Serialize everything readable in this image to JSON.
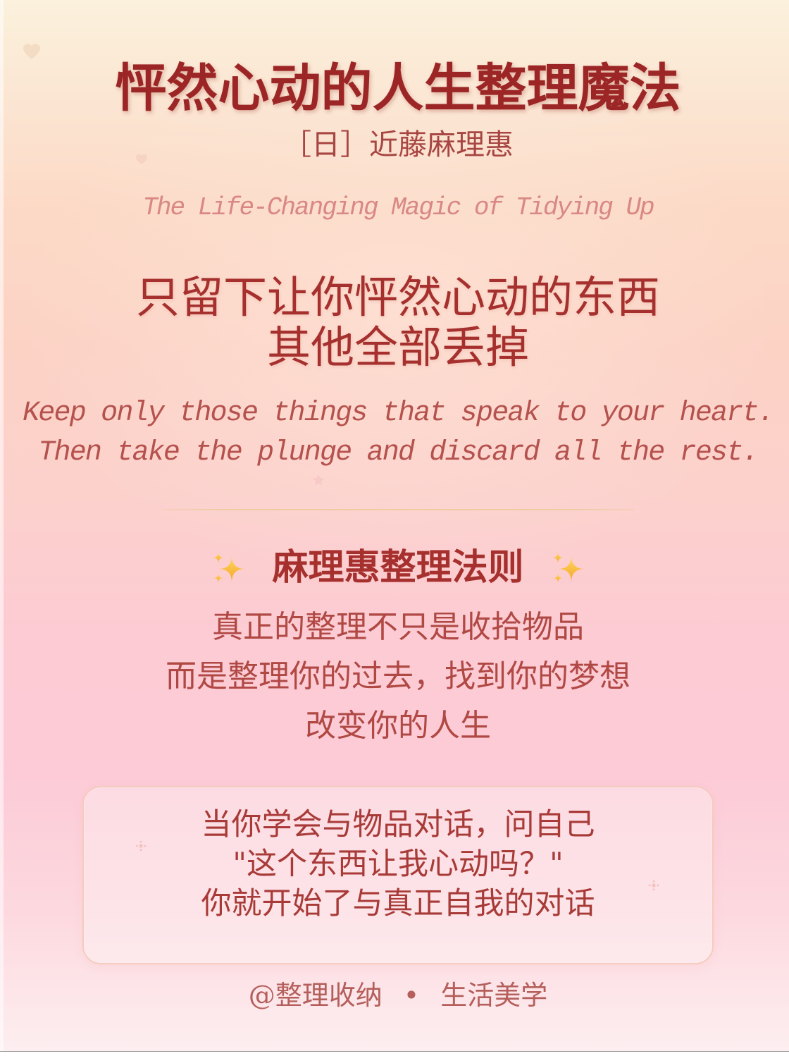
{
  "title": "怦然心动的人生整理魔法",
  "author": "［日］近藤麻理惠",
  "english_title": "The Life-Changing Magic of Tidying Up",
  "main_quote": {
    "lines": [
      "只留下让你怦然心动的东西",
      "其他全部丢掉"
    ]
  },
  "english_quote": {
    "lines": [
      "Keep only those things that speak to your heart.",
      "Then take the plunge and discard all the rest."
    ]
  },
  "rules": {
    "heading": "麻理惠整理法则",
    "lines": [
      "真正的整理不只是收拾物品",
      "而是整理你的过去，找到你的梦想",
      "改变你的人生"
    ]
  },
  "quote_box": {
    "lines": [
      "当你学会与物品对话，问自己",
      "\"这个东西让我心动吗？\"",
      "你就开始了与真正自我的对话"
    ]
  },
  "footer": {
    "handle": "@整理收纳",
    "separator": "•",
    "tagline": "生活美学"
  },
  "icons": {
    "heading_decoration": "sparkles-icon",
    "background_decorations": [
      "heart-icon",
      "heart-icon",
      "star-icon"
    ],
    "box_decoration": "sparkle-dot-icon"
  },
  "colors": {
    "background_top": "#fbf1dc",
    "background_peach": "#fcd9c6",
    "background_pink": "#fccbd7",
    "background_bottom": "#fdeef0",
    "title": "#9c2626",
    "author": "#a84643",
    "english_title": "#d98884",
    "primary_text": "#a6302e",
    "english_quote": "#b5524e",
    "secondary_text": "#b04844",
    "divider": "#f1cba6",
    "box_border": "#f5cbbd",
    "box_text": "#a83b38",
    "footer": "#b45f5b",
    "sparkle_gold_light": "#ffd966",
    "sparkle_gold_dark": "#f5a524"
  }
}
